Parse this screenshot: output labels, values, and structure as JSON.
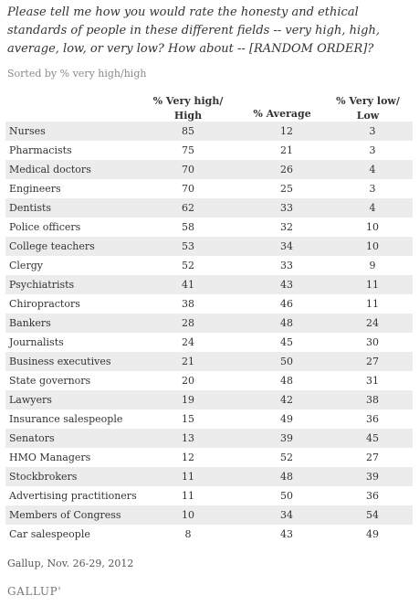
{
  "question": "Please tell me how you would rate the honesty and ethical standards of people in these different fields -- very high, high, average, low, or very low? How about -- [RANDOM ORDER]?",
  "subtitle": "Sorted by % very high/high",
  "columns": {
    "very_high_high": "% Very high/ High",
    "average": "% Average",
    "very_low_low": "% Very low/ Low"
  },
  "source": "Gallup, Nov. 26-29, 2012",
  "logo_text": "GALLUP'",
  "chart_data": {
    "type": "table",
    "columns": [
      "% Very high/ High",
      "% Average",
      "% Very low/ Low"
    ],
    "rows": [
      {
        "label": "Nurses",
        "values": [
          "85",
          "12",
          "3"
        ]
      },
      {
        "label": "Pharmacists",
        "values": [
          "75",
          "21",
          "3"
        ]
      },
      {
        "label": "Medical doctors",
        "values": [
          "70",
          "26",
          "4"
        ]
      },
      {
        "label": "Engineers",
        "values": [
          "70",
          "25",
          "3"
        ]
      },
      {
        "label": "Dentists",
        "values": [
          "62",
          "33",
          "4"
        ]
      },
      {
        "label": "Police officers",
        "values": [
          "58",
          "32",
          "10"
        ]
      },
      {
        "label": "College teachers",
        "values": [
          "53",
          "34",
          "10"
        ]
      },
      {
        "label": "Clergy",
        "values": [
          "52",
          "33",
          "9"
        ]
      },
      {
        "label": "Psychiatrists",
        "values": [
          "41",
          "43",
          "11"
        ]
      },
      {
        "label": "Chiropractors",
        "values": [
          "38",
          "46",
          "11"
        ]
      },
      {
        "label": "Bankers",
        "values": [
          "28",
          "48",
          "24"
        ]
      },
      {
        "label": "Journalists",
        "values": [
          "24",
          "45",
          "30"
        ]
      },
      {
        "label": "Business executives",
        "values": [
          "21",
          "50",
          "27"
        ]
      },
      {
        "label": "State governors",
        "values": [
          "20",
          "48",
          "31"
        ]
      },
      {
        "label": "Lawyers",
        "values": [
          "19",
          "42",
          "38"
        ]
      },
      {
        "label": "Insurance salespeople",
        "values": [
          "15",
          "49",
          "36"
        ]
      },
      {
        "label": "Senators",
        "values": [
          "13",
          "39",
          "45"
        ]
      },
      {
        "label": "HMO Managers",
        "values": [
          "12",
          "52",
          "27"
        ]
      },
      {
        "label": "Stockbrokers",
        "values": [
          "11",
          "48",
          "39"
        ]
      },
      {
        "label": "Advertising practitioners",
        "values": [
          "11",
          "50",
          "36"
        ]
      },
      {
        "label": "Members of Congress",
        "values": [
          "10",
          "34",
          "54"
        ]
      },
      {
        "label": "Car salespeople",
        "values": [
          "8",
          "43",
          "49"
        ]
      }
    ]
  }
}
